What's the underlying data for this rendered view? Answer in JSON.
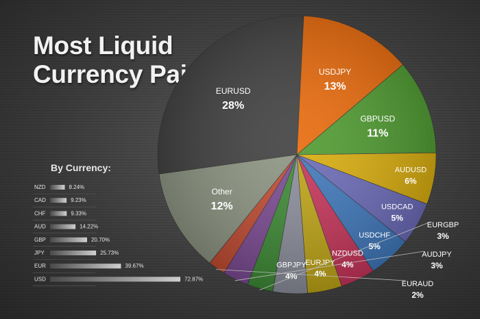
{
  "chart_data": [
    {
      "type": "pie",
      "title": "Most Liquid Currency Pairs",
      "title_lines": [
        "Most Liquid",
        "Currency Pairs"
      ],
      "slices": [
        {
          "name": "EURUSD",
          "value": 28,
          "label": "28%",
          "color": "#3f3f3f"
        },
        {
          "name": "USDJPY",
          "value": 13,
          "label": "13%",
          "color": "#e8690a"
        },
        {
          "name": "GBPUSD",
          "value": 11,
          "label": "11%",
          "color": "#4e9a2f"
        },
        {
          "name": "AUDUSD",
          "value": 6,
          "label": "6%",
          "color": "#d8ac0c"
        },
        {
          "name": "USDCAD",
          "value": 5,
          "label": "5%",
          "color": "#6b6ab8"
        },
        {
          "name": "USDCHF",
          "value": 5,
          "label": "5%",
          "color": "#3f78bb"
        },
        {
          "name": "NZDUSD",
          "value": 4,
          "label": "4%",
          "color": "#c7345a"
        },
        {
          "name": "EURJPY",
          "value": 4,
          "label": "4%",
          "color": "#bfa516"
        },
        {
          "name": "GBPJPY",
          "value": 4,
          "label": "4%",
          "color": "#8b8e9b"
        },
        {
          "name": "EURGBP",
          "value": 3,
          "label": "3%",
          "color": "#3d8a35"
        },
        {
          "name": "AUDJPY",
          "value": 3,
          "label": "3%",
          "color": "#7b4a92"
        },
        {
          "name": "EURAUD",
          "value": 2,
          "label": "2%",
          "color": "#c14b32"
        },
        {
          "name": "Other",
          "value": 12,
          "label": "12%",
          "color": "#8c9481"
        }
      ]
    },
    {
      "type": "bar",
      "orientation": "horizontal",
      "title": "By Currency:",
      "categories": [
        "NZD",
        "CAD",
        "CHF",
        "AUD",
        "GBP",
        "JPY",
        "EUR",
        "USD"
      ],
      "values": [
        8.24,
        9.23,
        9.33,
        14.22,
        20.7,
        25.73,
        39.67,
        72.87
      ],
      "value_labels": [
        "8.24%",
        "9.23%",
        "9.33%",
        "14.22%",
        "20.70%",
        "25.73%",
        "39.67%",
        "72.87%"
      ]
    }
  ]
}
